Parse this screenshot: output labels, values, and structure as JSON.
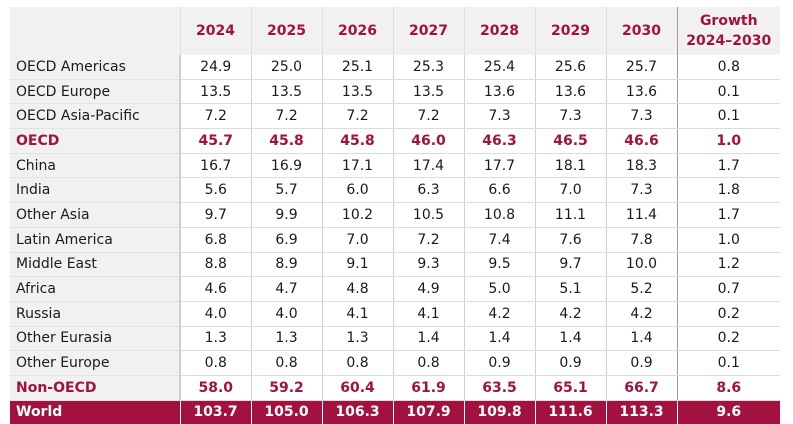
{
  "table": {
    "header": {
      "region": "",
      "years": [
        "2024",
        "2025",
        "2026",
        "2027",
        "2028",
        "2029",
        "2030"
      ],
      "growth_line1": "Growth",
      "growth_line2": "2024–2030"
    },
    "rows": [
      {
        "region": "OECD Americas",
        "values": [
          "24.9",
          "25.0",
          "25.1",
          "25.3",
          "25.4",
          "25.6",
          "25.7"
        ],
        "growth": "0.8",
        "kind": "normal"
      },
      {
        "region": "OECD Europe",
        "values": [
          "13.5",
          "13.5",
          "13.5",
          "13.5",
          "13.6",
          "13.6",
          "13.6"
        ],
        "growth": "0.1",
        "kind": "normal"
      },
      {
        "region": "OECD Asia-Pacific",
        "values": [
          "7.2",
          "7.2",
          "7.2",
          "7.2",
          "7.3",
          "7.3",
          "7.3"
        ],
        "growth": "0.1",
        "kind": "normal"
      },
      {
        "region": "OECD",
        "values": [
          "45.7",
          "45.8",
          "45.8",
          "46.0",
          "46.3",
          "46.5",
          "46.6"
        ],
        "growth": "1.0",
        "kind": "subtotal"
      },
      {
        "region": "China",
        "values": [
          "16.7",
          "16.9",
          "17.1",
          "17.4",
          "17.7",
          "18.1",
          "18.3"
        ],
        "growth": "1.7",
        "kind": "normal"
      },
      {
        "region": "India",
        "values": [
          "5.6",
          "5.7",
          "6.0",
          "6.3",
          "6.6",
          "7.0",
          "7.3"
        ],
        "growth": "1.8",
        "kind": "normal"
      },
      {
        "region": "Other Asia",
        "values": [
          "9.7",
          "9.9",
          "10.2",
          "10.5",
          "10.8",
          "11.1",
          "11.4"
        ],
        "growth": "1.7",
        "kind": "normal"
      },
      {
        "region": "Latin America",
        "values": [
          "6.8",
          "6.9",
          "7.0",
          "7.2",
          "7.4",
          "7.6",
          "7.8"
        ],
        "growth": "1.0",
        "kind": "normal"
      },
      {
        "region": "Middle East",
        "values": [
          "8.8",
          "8.9",
          "9.1",
          "9.3",
          "9.5",
          "9.7",
          "10.0"
        ],
        "growth": "1.2",
        "kind": "normal"
      },
      {
        "region": "Africa",
        "values": [
          "4.6",
          "4.7",
          "4.8",
          "4.9",
          "5.0",
          "5.1",
          "5.2"
        ],
        "growth": "0.7",
        "kind": "normal"
      },
      {
        "region": "Russia",
        "values": [
          "4.0",
          "4.0",
          "4.1",
          "4.1",
          "4.2",
          "4.2",
          "4.2"
        ],
        "growth": "0.2",
        "kind": "normal"
      },
      {
        "region": "Other Eurasia",
        "values": [
          "1.3",
          "1.3",
          "1.3",
          "1.4",
          "1.4",
          "1.4",
          "1.4"
        ],
        "growth": "0.2",
        "kind": "normal"
      },
      {
        "region": "Other Europe",
        "values": [
          "0.8",
          "0.8",
          "0.8",
          "0.8",
          "0.9",
          "0.9",
          "0.9"
        ],
        "growth": "0.1",
        "kind": "normal"
      },
      {
        "region": "Non-OECD",
        "values": [
          "58.0",
          "59.2",
          "60.4",
          "61.9",
          "63.5",
          "65.1",
          "66.7"
        ],
        "growth": "8.6",
        "kind": "subtotal"
      },
      {
        "region": "World",
        "values": [
          "103.7",
          "105.0",
          "106.3",
          "107.9",
          "109.8",
          "111.6",
          "113.3"
        ],
        "growth": "9.6",
        "kind": "total"
      }
    ]
  },
  "colors": {
    "accent": "#a3123f",
    "label_bg": "#f1f1f1",
    "text": "#1a1a1a"
  }
}
